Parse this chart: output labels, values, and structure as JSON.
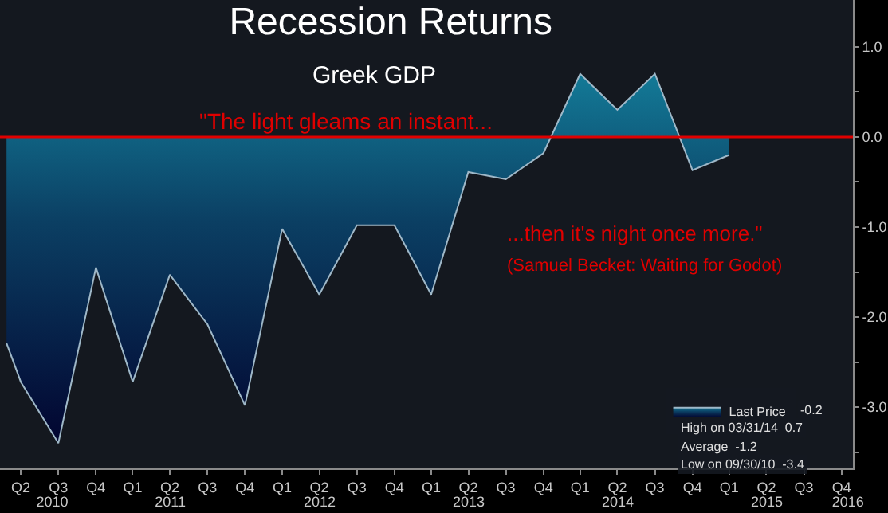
{
  "chart_data": {
    "type": "area",
    "title": "Recession Returns",
    "subtitle": "Greek GDP",
    "x": [
      "2010-05-26",
      "2010-06-30",
      "2010-09-30",
      "2010-12-31",
      "2011-03-31",
      "2011-06-30",
      "2011-09-30",
      "2011-12-31",
      "2012-03-31",
      "2012-06-30",
      "2012-09-30",
      "2012-12-31",
      "2013-03-31",
      "2013-06-30",
      "2013-09-30",
      "2013-12-31",
      "2014-03-31",
      "2014-06-30",
      "2014-09-30",
      "2014-12-31",
      "2015-03-31"
    ],
    "series": [
      {
        "name": "Last Price",
        "color": "#9fb8c8",
        "values": [
          -2.29,
          -2.72,
          -3.4,
          -1.45,
          -2.72,
          -1.53,
          -2.08,
          -2.98,
          -1.02,
          -1.75,
          -0.98,
          -0.98,
          -1.75,
          -0.39,
          -0.47,
          -0.18,
          0.7,
          0.3,
          0.7,
          -0.37,
          -0.2
        ]
      }
    ],
    "xlim": [
      "2010-05-10",
      "2016-01-28"
    ],
    "xticks": [
      {
        "value": "2010-06-30",
        "label": "Q2"
      },
      {
        "value": "2010-09-30",
        "label": "Q3"
      },
      {
        "value": "2010-12-31",
        "label": "Q4"
      },
      {
        "value": "2011-03-31",
        "label": "Q1"
      },
      {
        "value": "2011-06-30",
        "label": "Q2"
      },
      {
        "value": "2011-09-30",
        "label": "Q3"
      },
      {
        "value": "2011-12-31",
        "label": "Q4"
      },
      {
        "value": "2012-03-31",
        "label": "Q1"
      },
      {
        "value": "2012-06-30",
        "label": "Q2"
      },
      {
        "value": "2012-09-30",
        "label": "Q3"
      },
      {
        "value": "2012-12-31",
        "label": "Q4"
      },
      {
        "value": "2013-03-31",
        "label": "Q1"
      },
      {
        "value": "2013-06-30",
        "label": "Q2"
      },
      {
        "value": "2013-09-30",
        "label": "Q3"
      },
      {
        "value": "2013-12-31",
        "label": "Q4"
      },
      {
        "value": "2014-03-31",
        "label": "Q1"
      },
      {
        "value": "2014-06-30",
        "label": "Q2"
      },
      {
        "value": "2014-09-30",
        "label": "Q3"
      },
      {
        "value": "2014-12-31",
        "label": "Q4"
      },
      {
        "value": "2015-03-31",
        "label": "Q1"
      },
      {
        "value": "2015-06-30",
        "label": "Q2"
      },
      {
        "value": "2015-09-30",
        "label": "Q3"
      },
      {
        "value": "2015-12-31",
        "label": "Q4"
      }
    ],
    "x2lim": [
      "2010-05-10",
      "2016-01-28"
    ],
    "x2ticks": [
      {
        "value": "2010-09-15",
        "label": "2010"
      },
      {
        "value": "2011-07-01",
        "label": "2011"
      },
      {
        "value": "2012-07-01",
        "label": "2012"
      },
      {
        "value": "2013-07-01",
        "label": "2013"
      },
      {
        "value": "2014-07-01",
        "label": "2014"
      },
      {
        "value": "2015-07-01",
        "label": "2015"
      },
      {
        "value": "2016-01-16",
        "label": "2016"
      }
    ],
    "ylim": [
      -3.68,
      1.52
    ],
    "yticks": [
      {
        "value": 1,
        "label": "1.0"
      },
      {
        "value": 0.5,
        "label": null
      },
      {
        "value": 0,
        "label": "0.0"
      },
      {
        "value": -0.5,
        "label": null
      },
      {
        "value": -1,
        "label": "-1.0"
      },
      {
        "value": -1.5,
        "label": null
      },
      {
        "value": -2,
        "label": "-2.0"
      },
      {
        "value": -2.5,
        "label": null
      },
      {
        "value": -3,
        "label": "-3.0"
      },
      {
        "value": -3.5,
        "label": null
      }
    ],
    "ref_lines": [
      {
        "axis": "y",
        "value": 0,
        "label": null,
        "color": "#e00000"
      }
    ],
    "annotations": [
      "\"The light gleams an instant...",
      "...then it's night once more.\"",
      "(Samuel Becket: Waiting for Godot)",
      "-0.2",
      "High on 03/31/14  0.7",
      "Average  -1.2",
      "Low on 09/30/10  -3.4"
    ],
    "grid": false,
    "legend": "bottom right",
    "marker": "none",
    "line_style": "solid"
  }
}
